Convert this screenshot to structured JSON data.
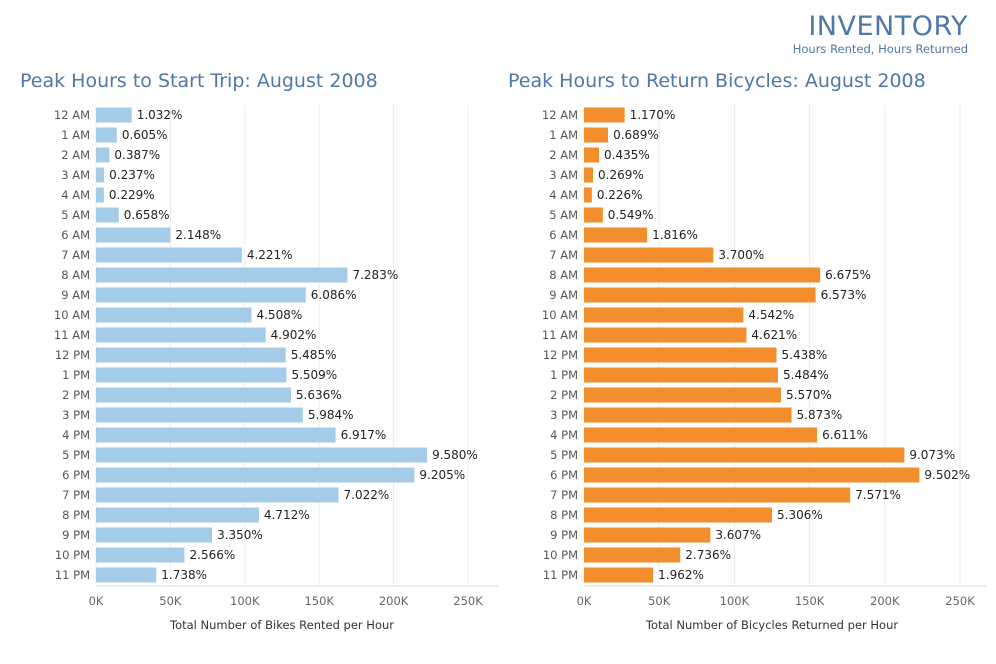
{
  "header": {
    "title": "INVENTORY",
    "subtitle": "Hours Rented, Hours Returned"
  },
  "chart_data": [
    {
      "type": "bar",
      "orientation": "horizontal",
      "title": "Peak Hours to Start Trip: August 2008",
      "xlabel": "Total Number of Bikes Rented per Hour",
      "ylabel": "",
      "xlim": [
        0,
        250000
      ],
      "x_ticks": [
        "0K",
        "50K",
        "100K",
        "150K",
        "200K",
        "250K"
      ],
      "grid": "vertical",
      "color": "#a4cbe7",
      "categories": [
        "12 AM",
        "1 AM",
        "2 AM",
        "3 AM",
        "4 AM",
        "5 AM",
        "6 AM",
        "7 AM",
        "8 AM",
        "9 AM",
        "10 AM",
        "11 AM",
        "12 PM",
        "1 PM",
        "2 PM",
        "3 PM",
        "4 PM",
        "5 PM",
        "6 PM",
        "7 PM",
        "8 PM",
        "9 PM",
        "10 PM",
        "11 PM"
      ],
      "values": [
        24000,
        14000,
        9000,
        5500,
        5300,
        15300,
        50000,
        98000,
        169000,
        141000,
        104500,
        114000,
        127500,
        128000,
        131000,
        139000,
        161000,
        222500,
        214000,
        163000,
        109500,
        78000,
        59500,
        40500
      ],
      "labels": [
        "1.032%",
        "0.605%",
        "0.387%",
        "0.237%",
        "0.229%",
        "0.658%",
        "2.148%",
        "4.221%",
        "7.283%",
        "6.086%",
        "4.508%",
        "4.902%",
        "5.485%",
        "5.509%",
        "5.636%",
        "5.984%",
        "6.917%",
        "9.580%",
        "9.205%",
        "7.022%",
        "4.712%",
        "3.350%",
        "2.566%",
        "1.738%"
      ]
    },
    {
      "type": "bar",
      "orientation": "horizontal",
      "title": "Peak Hours to Return Bicycles: August 2008",
      "xlabel": "Total Number of Bicycles Returned per Hour",
      "ylabel": "",
      "xlim": [
        0,
        250000
      ],
      "x_ticks": [
        "0K",
        "50K",
        "100K",
        "150K",
        "200K",
        "250K"
      ],
      "grid": "vertical",
      "color": "#f28e2b",
      "categories": [
        "12 AM",
        "1 AM",
        "2 AM",
        "3 AM",
        "4 AM",
        "5 AM",
        "6 AM",
        "7 AM",
        "8 AM",
        "9 AM",
        "10 AM",
        "11 AM",
        "12 PM",
        "1 PM",
        "2 PM",
        "3 PM",
        "4 PM",
        "5 PM",
        "6 PM",
        "7 PM",
        "8 PM",
        "9 PM",
        "10 PM",
        "11 PM"
      ],
      "values": [
        27000,
        16000,
        10000,
        6000,
        5200,
        12500,
        42000,
        86000,
        157000,
        154000,
        106000,
        108000,
        128000,
        129000,
        131000,
        138000,
        155000,
        213000,
        223000,
        177000,
        125000,
        84000,
        64000,
        46000
      ],
      "labels": [
        "1.170%",
        "0.689%",
        "0.435%",
        "0.269%",
        "0.226%",
        "0.549%",
        "1.816%",
        "3.700%",
        "6.675%",
        "6.573%",
        "4.542%",
        "4.621%",
        "5.438%",
        "5.484%",
        "5.570%",
        "5.873%",
        "6.611%",
        "9.073%",
        "9.502%",
        "7.571%",
        "5.306%",
        "3.607%",
        "2.736%",
        "1.962%"
      ]
    }
  ]
}
